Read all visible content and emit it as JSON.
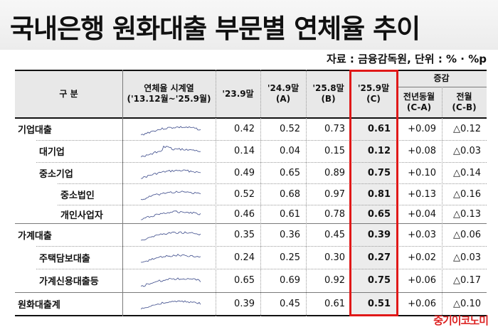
{
  "title": "국내은행 원화대출 부문별 연체율 추이",
  "source": "자료 : 금융감독원, 단위 : % · %p",
  "logo": "중기이코노미",
  "header": {
    "category": "구 분",
    "series_line1": "연체율 시계열",
    "series_line2": "('13.12월~'25.9월)",
    "c1": "'23.9말",
    "c2_line1": "'24.9말",
    "c2_line2": "(A)",
    "c3_line1": "'25.8말",
    "c3_line2": "(B)",
    "c4_line1": "'25.9말",
    "c4_line2": "(C)",
    "change": "증감",
    "yoy_line1": "전년동월",
    "yoy_line2": "(C-A)",
    "mom_line1": "전월",
    "mom_line2": "(C-B)"
  },
  "rows": [
    {
      "label": "기업대출",
      "v1": "0.42",
      "v2": "0.52",
      "v3": "0.73",
      "v4": "0.61",
      "yoy": "+0.09",
      "mom": "△0.12"
    },
    {
      "label": "대기업",
      "v1": "0.14",
      "v2": "0.04",
      "v3": "0.15",
      "v4": "0.12",
      "yoy": "+0.08",
      "mom": "△0.03"
    },
    {
      "label": "중소기업",
      "v1": "0.49",
      "v2": "0.65",
      "v3": "0.89",
      "v4": "0.75",
      "yoy": "+0.10",
      "mom": "△0.14"
    },
    {
      "label": "중소법인",
      "v1": "0.52",
      "v2": "0.68",
      "v3": "0.97",
      "v4": "0.81",
      "yoy": "+0.13",
      "mom": "△0.16"
    },
    {
      "label": "개인사업자",
      "v1": "0.46",
      "v2": "0.61",
      "v3": "0.78",
      "v4": "0.65",
      "yoy": "+0.04",
      "mom": "△0.13"
    },
    {
      "label": "가계대출",
      "v1": "0.35",
      "v2": "0.36",
      "v3": "0.45",
      "v4": "0.39",
      "yoy": "+0.03",
      "mom": "△0.06"
    },
    {
      "label": "주택담보대출",
      "v1": "0.24",
      "v2": "0.25",
      "v3": "0.30",
      "v4": "0.27",
      "yoy": "+0.02",
      "mom": "△0.03"
    },
    {
      "label": "가계신용대출등",
      "v1": "0.65",
      "v2": "0.69",
      "v3": "0.92",
      "v4": "0.75",
      "yoy": "+0.06",
      "mom": "△0.17"
    },
    {
      "label": "원화대출계",
      "v1": "0.39",
      "v2": "0.45",
      "v3": "0.61",
      "v4": "0.51",
      "yoy": "+0.06",
      "mom": "△0.10"
    }
  ],
  "colors": {
    "highlight_border": "#e01818",
    "header_bg": "#e8e8e8",
    "logo": "#d22222"
  }
}
